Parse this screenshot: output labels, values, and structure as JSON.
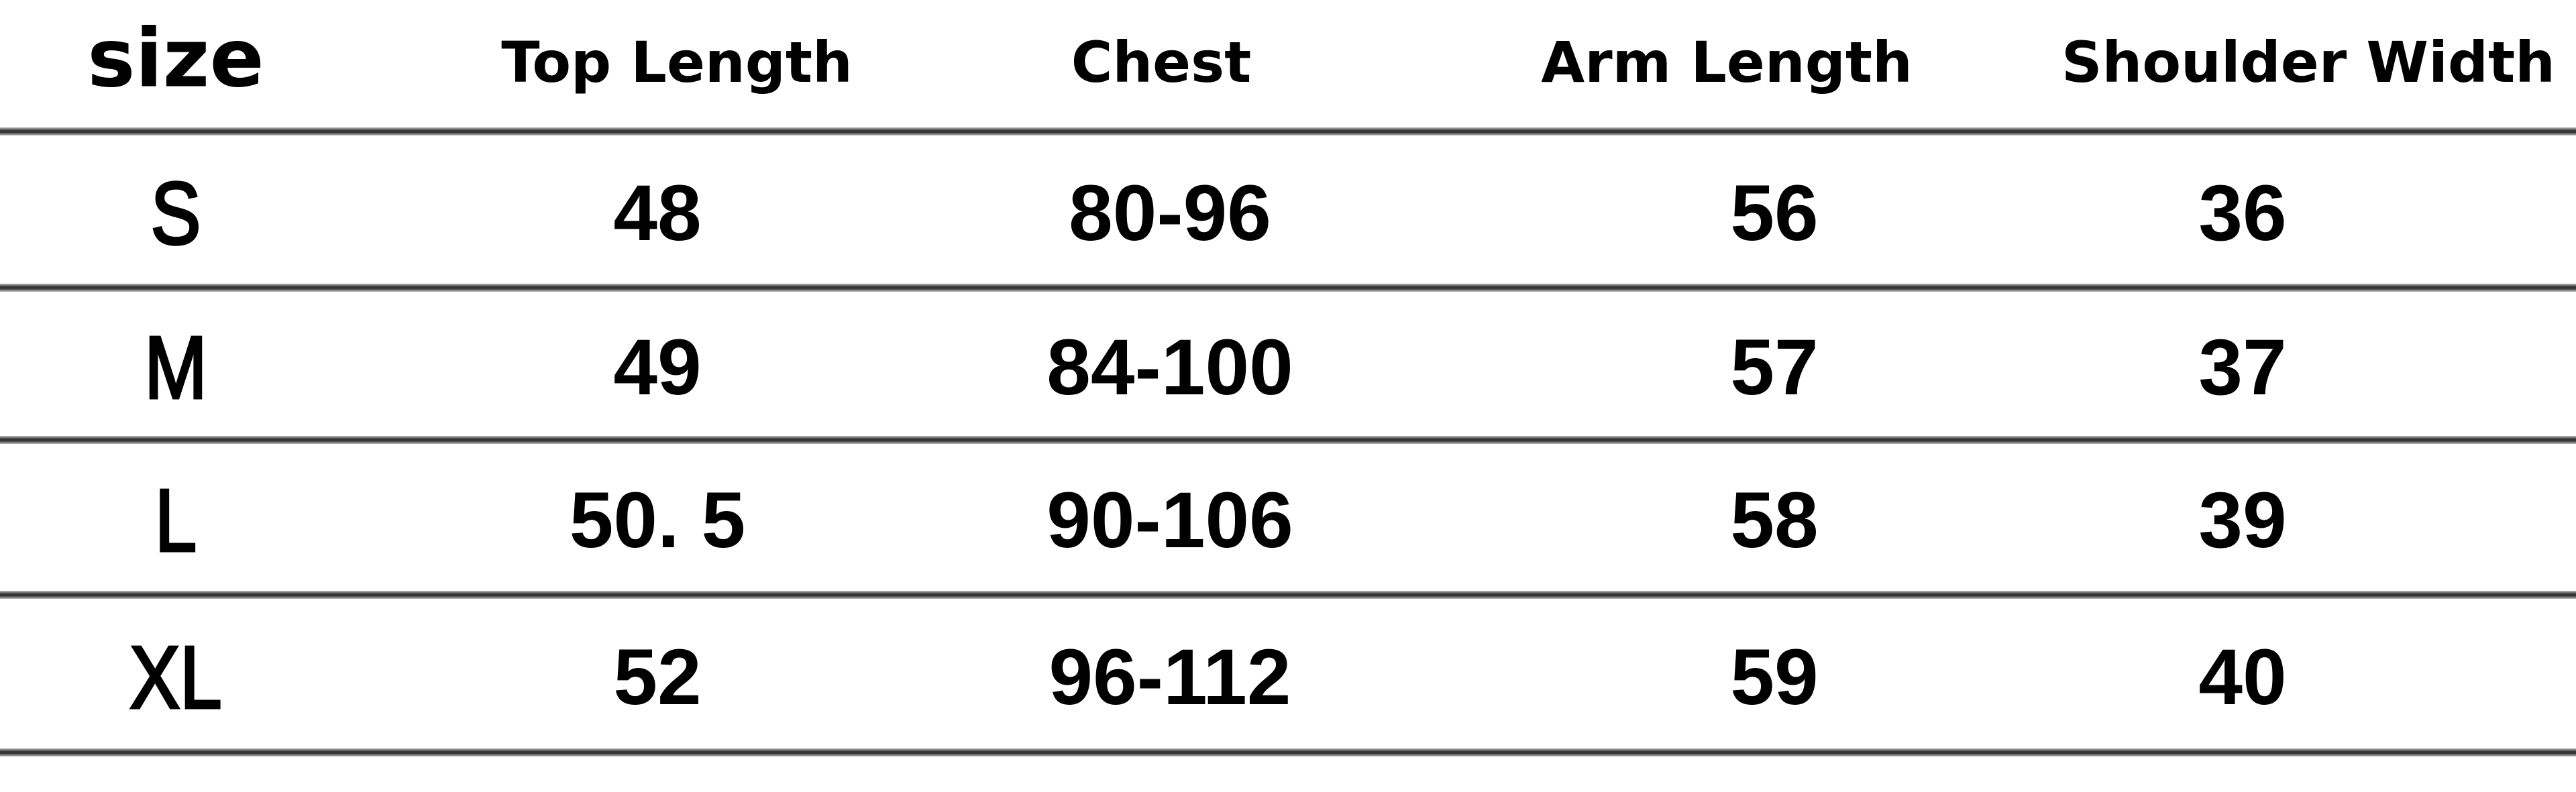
{
  "table": {
    "headers": [
      "size",
      "Top Length",
      "Chest",
      "Arm Length",
      "Shoulder Width"
    ],
    "rows": [
      [
        "S",
        "48",
        "80-96",
        "56",
        "36"
      ],
      [
        "M",
        "49",
        "84-100",
        "57",
        "37"
      ],
      [
        "L",
        "50. 5",
        "90-106",
        "58",
        "39"
      ],
      [
        "XL",
        "52",
        "96-112",
        "59",
        "40"
      ]
    ]
  }
}
